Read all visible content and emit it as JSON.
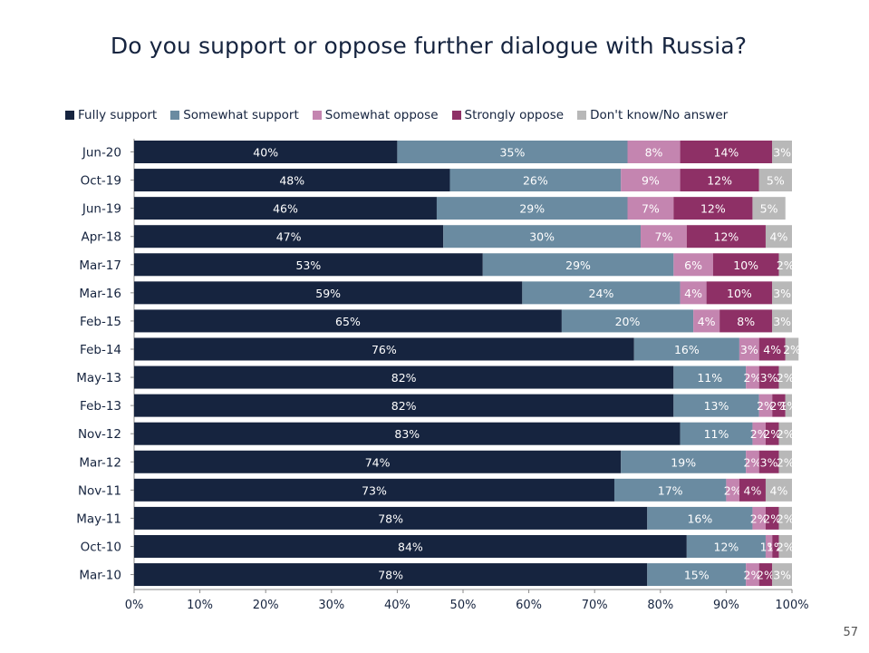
{
  "slide": {
    "title": "Do you support or oppose further dialogue with Russia?",
    "page_number": "57"
  },
  "chart_data": {
    "type": "bar",
    "orientation": "horizontal",
    "stacked": true,
    "title": "Do you support or oppose further dialogue with Russia?",
    "xlabel": "",
    "ylabel": "",
    "xlim": [
      0,
      100
    ],
    "x_ticks": [
      "0%",
      "10%",
      "20%",
      "30%",
      "40%",
      "50%",
      "60%",
      "70%",
      "80%",
      "90%",
      "100%"
    ],
    "legend_position": "top",
    "categories": [
      "Jun-20",
      "Oct-19",
      "Jun-19",
      "Apr-18",
      "Mar-17",
      "Mar-16",
      "Feb-15",
      "Feb-14",
      "May-13",
      "Feb-13",
      "Nov-12",
      "Mar-12",
      "Nov-11",
      "May-11",
      "Oct-10",
      "Mar-10"
    ],
    "series": [
      {
        "name": "Fully support",
        "color": "#16243f",
        "values": [
          40,
          48,
          46,
          47,
          53,
          59,
          65,
          76,
          82,
          82,
          83,
          74,
          73,
          78,
          84,
          78
        ]
      },
      {
        "name": "Somewhat support",
        "color": "#6a8ba1",
        "values": [
          35,
          26,
          29,
          30,
          29,
          24,
          20,
          16,
          11,
          13,
          11,
          19,
          17,
          16,
          12,
          15
        ]
      },
      {
        "name": "Somewhat oppose",
        "color": "#c485b0",
        "values": [
          8,
          9,
          7,
          7,
          6,
          4,
          4,
          3,
          2,
          2,
          2,
          2,
          2,
          2,
          1,
          2
        ]
      },
      {
        "name": "Strongly oppose",
        "color": "#8e3066",
        "values": [
          14,
          12,
          12,
          12,
          10,
          10,
          8,
          4,
          3,
          2,
          2,
          3,
          4,
          2,
          1,
          2
        ]
      },
      {
        "name": "Don't know/No answer",
        "color": "#b8b8b8",
        "values": [
          3,
          5,
          5,
          4,
          2,
          3,
          3,
          2,
          2,
          1,
          2,
          2,
          4,
          2,
          2,
          3
        ]
      }
    ]
  }
}
